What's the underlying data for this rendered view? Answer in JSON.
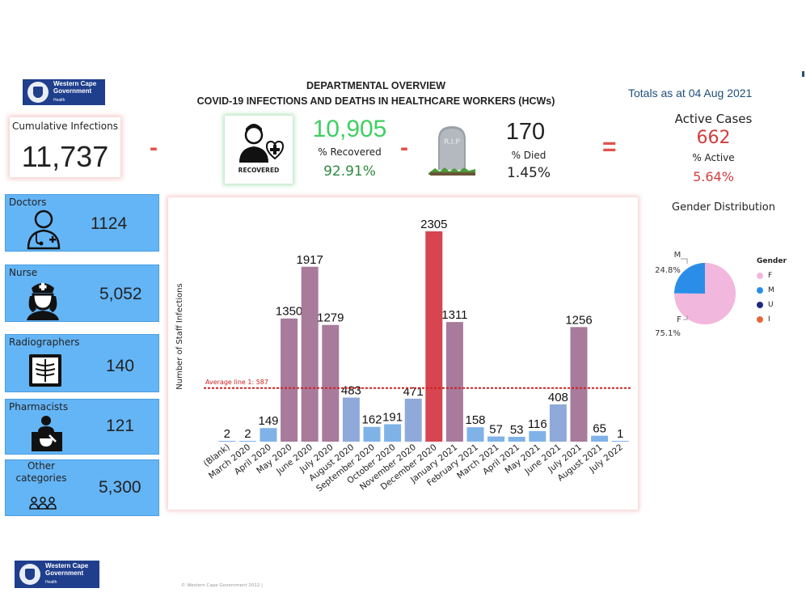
{
  "header": {
    "logo_line1": "Western Cape",
    "logo_line2": "Government",
    "logo_sub": "Health",
    "title_line1": "DEPARTMENTAL OVERVIEW",
    "title_line2": "COVID-19 INFECTIONS AND DEATHS IN HEALTHCARE WORKERS (HCWs)",
    "totals_label": "Totals as at 04 Aug 2021"
  },
  "summary": {
    "cumulative_label": "Cumulative Infections",
    "cumulative_value": "11,737",
    "minus_symbol": "-",
    "equals_symbol": "=",
    "recovered_caption": "RECOVERED",
    "recovered_value": "10,905",
    "recovered_label": "% Recovered",
    "recovered_pct": "92.91%",
    "tombstone_text": "R.I.P",
    "died_value": "170",
    "died_label": "% Died",
    "died_pct": "1.45%",
    "active_label": "Active Cases",
    "active_value": "662",
    "active_pct_label": "% Active",
    "active_pct": "5.64%"
  },
  "categories": [
    {
      "label": "Doctors",
      "value": "1124",
      "icon": "doctor-icon"
    },
    {
      "label": "Nurse",
      "value": "5,052",
      "icon": "nurse-icon"
    },
    {
      "label": "Radiographers",
      "value": "140",
      "icon": "xray-icon"
    },
    {
      "label": "Pharmacists",
      "value": "121",
      "icon": "pharmacist-icon"
    },
    {
      "label": "Other\ncategories",
      "value": "5,300",
      "icon": "group-icon"
    }
  ],
  "chart_data": [
    {
      "type": "bar",
      "ylabel": "Number of Staff Infections",
      "categories": [
        "(Blank)",
        "March 2020",
        "April 2020",
        "May 2020",
        "June 2020",
        "July 2020",
        "August 2020",
        "September 2020",
        "October 2020",
        "November 2020",
        "December 2020",
        "January 2021",
        "February 2021",
        "March 2021",
        "April 2021",
        "May 2021",
        "June 2021",
        "July 2021",
        "August 2021",
        "July 2022"
      ],
      "values": [
        2,
        2,
        149,
        1350,
        1917,
        1279,
        483,
        162,
        191,
        471,
        2305,
        1311,
        158,
        57,
        53,
        116,
        408,
        1256,
        65,
        1
      ],
      "ylim": [
        0,
        2305
      ],
      "reference_line": {
        "label": "Average line 1: 587",
        "value": 587
      },
      "colors": {
        "low": "#7fb3e8",
        "mid": "#8fa9da",
        "high": "#a87a9c",
        "peak": "#d64550",
        "ref_line": "#cc2222"
      }
    },
    {
      "type": "pie",
      "title": "Gender Distribution",
      "legend_title": "Gender",
      "categories": [
        "F",
        "M",
        "U",
        "I"
      ],
      "values": [
        75.1,
        24.8,
        0,
        0
      ],
      "slice_labels": [
        {
          "name": "M",
          "pct": "24.8%"
        },
        {
          "name": "F",
          "pct": "75.1%"
        }
      ],
      "colors": [
        "#f2b7dc",
        "#2a8ee8",
        "#1f2a7c",
        "#e3683c"
      ],
      "legend_position": "right"
    }
  ],
  "footer": {
    "copyright": "© Western Cape Government 2012 |"
  }
}
